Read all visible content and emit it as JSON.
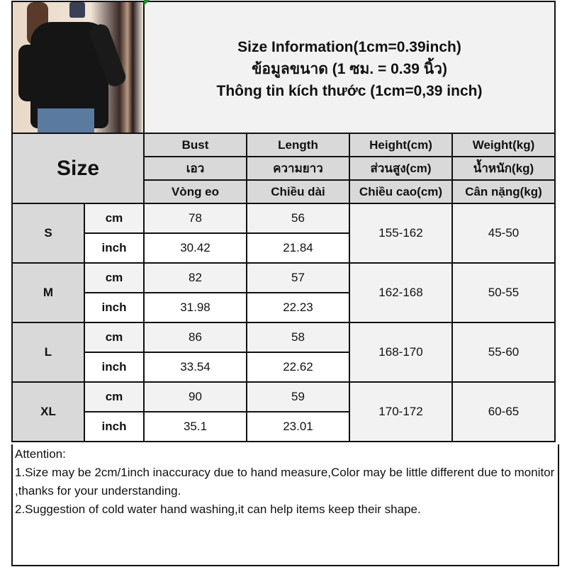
{
  "title": {
    "line1": "Size Information(1cm=0.39inch)",
    "line2": "ข้อมูลขนาด (1 ซม. = 0.39 นิ้ว)",
    "line3": "Thông tin kích thước (1cm=0,39 inch)"
  },
  "size_header": "Size",
  "columns": [
    {
      "en": "Bust",
      "th": "เอว",
      "vi": "Vòng eo"
    },
    {
      "en": "Length",
      "th": "ความยาว",
      "vi": "Chiều dài"
    },
    {
      "en": "Height(cm)",
      "th": "ส่วนสูง(cm)",
      "vi": "Chiều cao(cm)"
    },
    {
      "en": "Weight(kg)",
      "th": "น้ำหนัก(kg)",
      "vi": "Cân nặng(kg)"
    }
  ],
  "units": {
    "cm": "cm",
    "inch": "inch"
  },
  "sizes": [
    {
      "label": "S",
      "cm": {
        "bust": "78",
        "length": "56"
      },
      "inch": {
        "bust": "30.42",
        "length": "21.84"
      },
      "height": "155-162",
      "weight": "45-50"
    },
    {
      "label": "M",
      "cm": {
        "bust": "82",
        "length": "57"
      },
      "inch": {
        "bust": "31.98",
        "length": "22.23"
      },
      "height": "162-168",
      "weight": "50-55"
    },
    {
      "label": "L",
      "cm": {
        "bust": "86",
        "length": "58"
      },
      "inch": {
        "bust": "33.54",
        "length": "22.62"
      },
      "height": "168-170",
      "weight": "55-60"
    },
    {
      "label": "XL",
      "cm": {
        "bust": "90",
        "length": "59"
      },
      "inch": {
        "bust": "35.1",
        "length": "23.01"
      },
      "height": "170-172",
      "weight": "60-65"
    }
  ],
  "attention": {
    "heading": "Attention:",
    "note1": "1.Size may be 2cm/1inch inaccuracy due to hand measure,Color may be little different due to monitor ,thanks for your understanding.",
    "note2": "2.Suggestion of cold water hand washing,it can help items keep their shape."
  },
  "colors": {
    "header_gray": "#d9d9d9",
    "cell_light": "#f2f2f2",
    "border": "#111111"
  }
}
